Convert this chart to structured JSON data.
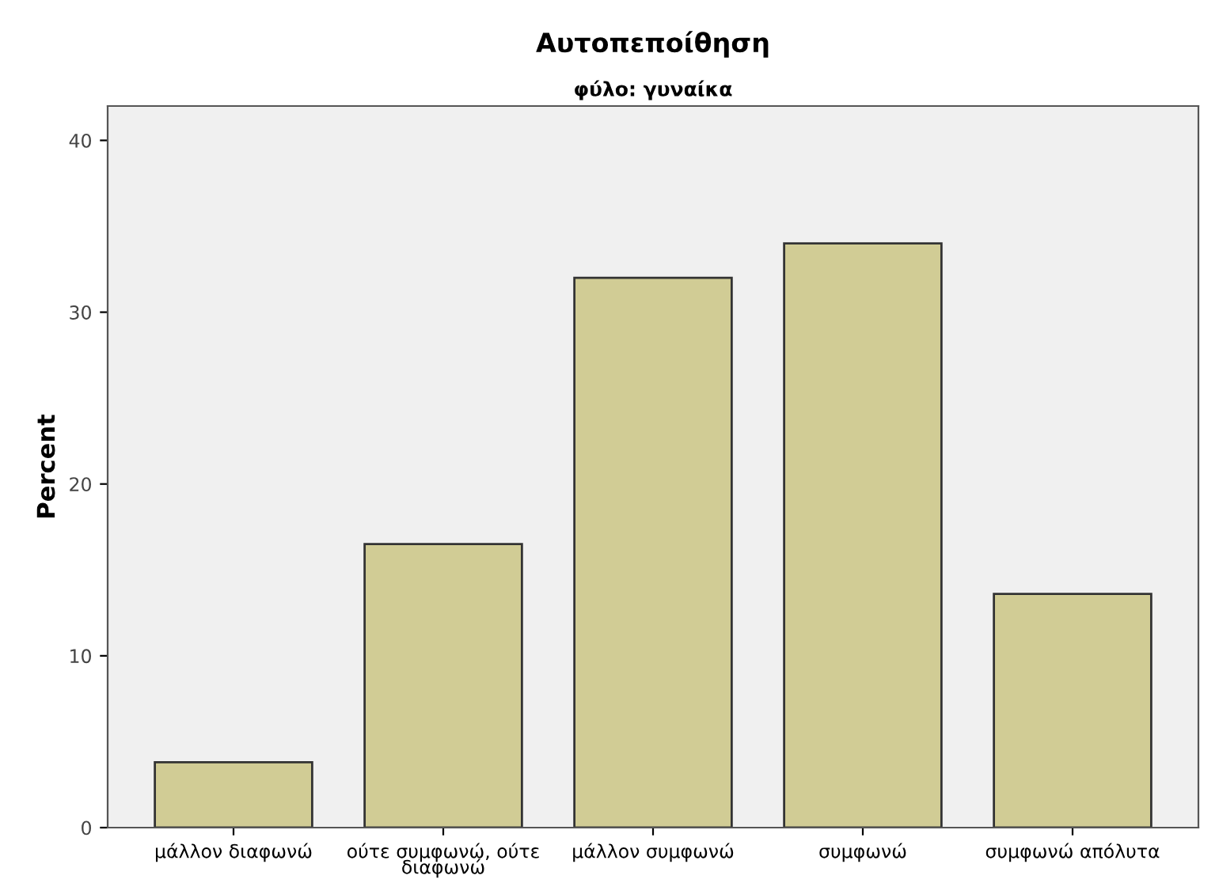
{
  "chart_data": {
    "type": "bar",
    "title": "Αυτοπεποίθηση",
    "subtitle": "φύλο: γυναίκα",
    "ylabel": "Percent",
    "categories": [
      "μάλλον διαφωνώ",
      "ούτε συμφωνώ, ούτε\nδιαφωνώ",
      "μάλλον συμφωνώ",
      "συμφωνώ",
      "συμφωνώ απόλυτα"
    ],
    "values": [
      3.8,
      16.5,
      32.0,
      34.0,
      13.6
    ],
    "color": "#d1cc95",
    "ylim": [
      0,
      42
    ],
    "yticks": [
      0,
      10,
      20,
      30,
      40
    ],
    "grid": false,
    "legend": false
  }
}
